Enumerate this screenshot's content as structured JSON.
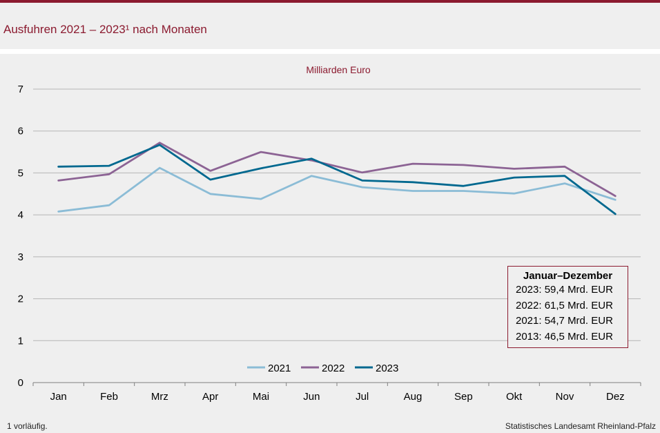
{
  "header": {
    "title": "Ausfuhren 2021 – 2023¹ nach Monaten"
  },
  "chart_data": {
    "type": "line",
    "subtitle": "Milliarden Euro",
    "categories": [
      "Jan",
      "Feb",
      "Mrz",
      "Apr",
      "Mai",
      "Jun",
      "Jul",
      "Aug",
      "Sep",
      "Okt",
      "Nov",
      "Dez"
    ],
    "y_ticks": [
      "0",
      "1",
      "2",
      "3",
      "4",
      "5",
      "6",
      "7"
    ],
    "ylim": [
      0,
      7
    ],
    "grid": true,
    "legend_position": "bottom-center",
    "series": [
      {
        "name": "2021",
        "color": "#8bbcd6",
        "values": [
          4.08,
          4.23,
          5.12,
          4.5,
          4.38,
          4.93,
          4.66,
          4.57,
          4.57,
          4.51,
          4.75,
          4.36
        ]
      },
      {
        "name": "2022",
        "color": "#8c6394",
        "values": [
          4.82,
          4.97,
          5.72,
          5.05,
          5.5,
          5.3,
          5.01,
          5.22,
          5.19,
          5.1,
          5.15,
          4.45
        ]
      },
      {
        "name": "2023",
        "color": "#00688f",
        "values": [
          5.15,
          5.17,
          5.67,
          4.84,
          5.11,
          5.34,
          4.82,
          4.78,
          4.69,
          4.89,
          4.93,
          4.02
        ]
      }
    ]
  },
  "info_box": {
    "title": "Januar–Dezember",
    "lines": [
      "2023: 59,4 Mrd. EUR",
      "2022: 61,5 Mrd. EUR",
      "2021: 54,7 Mrd. EUR",
      "2013: 46,5 Mrd. EUR"
    ]
  },
  "footer": {
    "footnote": "1 vorläufig.",
    "source": "Statistisches Landesamt Rheinland-Pfalz"
  }
}
